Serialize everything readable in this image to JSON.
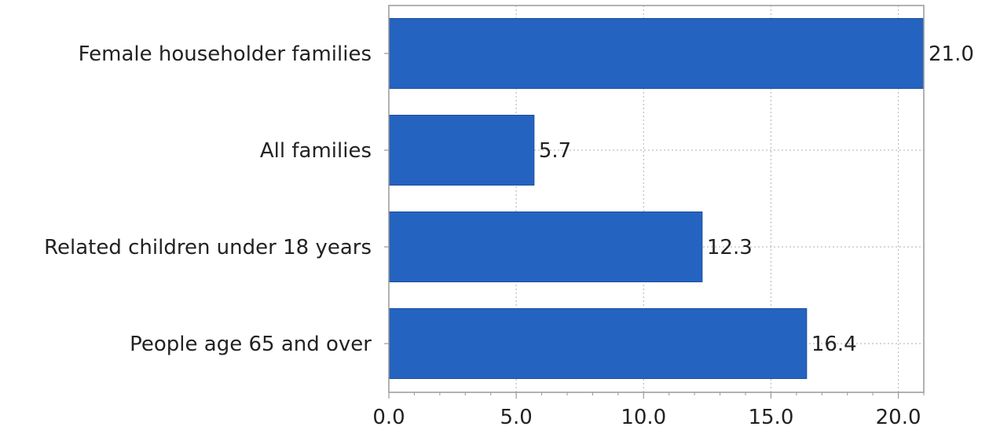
{
  "chart_data": {
    "type": "bar",
    "orientation": "horizontal",
    "categories": [
      "Female householder families",
      "All families",
      "Related children under 18 years",
      "People age 65 and over"
    ],
    "values": [
      21.0,
      5.7,
      12.3,
      16.4
    ],
    "value_labels": [
      "21.0",
      "5.7",
      "12.3",
      "16.4"
    ],
    "xlim": [
      0,
      21
    ],
    "x_ticks": [
      "0.0",
      "5.0",
      "10.0",
      "15.0",
      "20.0"
    ],
    "x_tick_values": [
      0,
      5,
      10,
      15,
      20
    ],
    "grid": true,
    "bar_color": "#2563c0",
    "title": "",
    "xlabel": "",
    "ylabel": ""
  }
}
